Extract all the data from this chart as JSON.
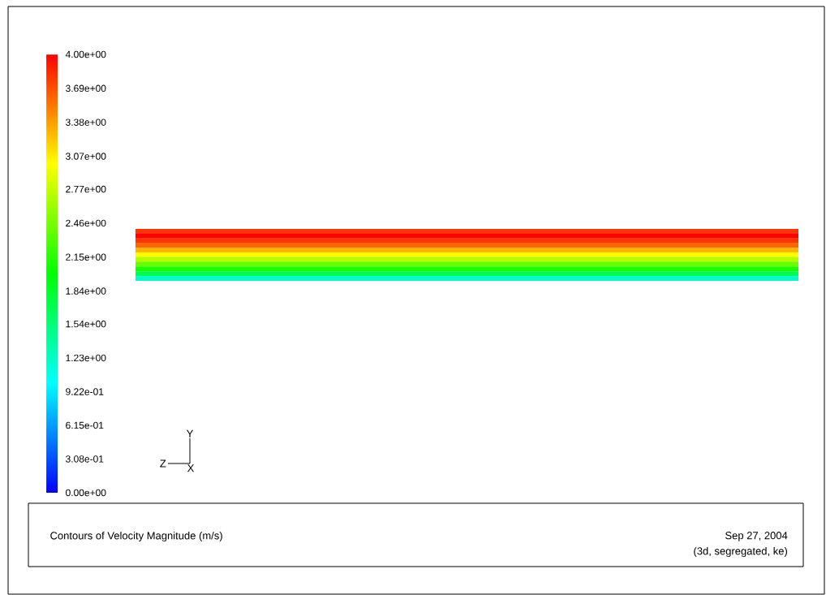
{
  "chart_data": {
    "type": "heatmap",
    "title": "Contours of Velocity Magnitude (m/s)",
    "categories": [
      null
    ],
    "y_categories": [
      null,
      null,
      null,
      null,
      null,
      null,
      null,
      null,
      null,
      null,
      null
    ],
    "cells": [
      [
        3.8
      ],
      [
        4.0
      ],
      [
        3.8
      ],
      [
        3.6
      ],
      [
        3.3
      ],
      [
        3.0
      ],
      [
        2.7
      ],
      [
        2.4
      ],
      [
        2.1
      ],
      [
        1.7
      ],
      [
        1.2
      ]
    ],
    "clim": [
      0,
      4
    ],
    "cticks": [
      {
        "value": 0,
        "label": "0.00e+00"
      },
      {
        "value": 0.308,
        "label": "3.08e-01"
      },
      {
        "value": 0.615,
        "label": "6.15e-01"
      },
      {
        "value": 0.922,
        "label": "9.22e-01"
      },
      {
        "value": 1.23,
        "label": "1.23e+00"
      },
      {
        "value": 1.54,
        "label": "1.54e+00"
      },
      {
        "value": 1.84,
        "label": "1.84e+00"
      },
      {
        "value": 2.15,
        "label": "2.15e+00"
      },
      {
        "value": 2.46,
        "label": "2.46e+00"
      },
      {
        "value": 2.77,
        "label": "2.77e+00"
      },
      {
        "value": 3.07,
        "label": "3.07e+00"
      },
      {
        "value": 3.38,
        "label": "3.38e+00"
      },
      {
        "value": 3.69,
        "label": "3.69e+00"
      },
      {
        "value": 4.0,
        "label": "4.00e+00"
      }
    ],
    "annotations": [
      "Sep 27, 2004",
      "(3d, segregated, ke)",
      "Y",
      "Z",
      "X"
    ]
  }
}
